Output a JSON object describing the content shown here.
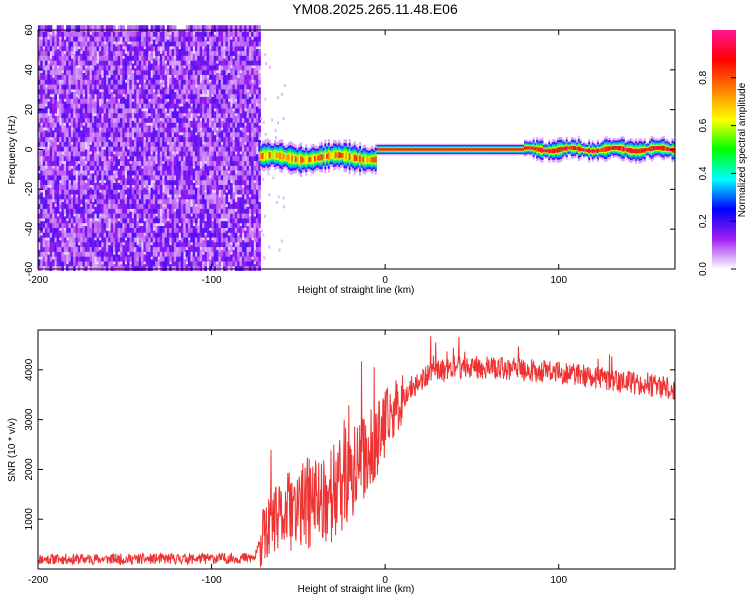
{
  "page_title": "YM08.2025.265.11.48.E06",
  "chart_data": [
    {
      "type": "heatmap",
      "title": "YM08.2025.265.11.48.E06",
      "xlabel": "Height of straight line (km)",
      "ylabel": "Frequency (Hz)",
      "xlim": [
        -200,
        167
      ],
      "ylim": [
        -60,
        60
      ],
      "x_ticks": [
        -200,
        -100,
        0,
        100
      ],
      "y_ticks": [
        -60,
        -40,
        -20,
        0,
        20,
        40,
        60
      ],
      "colorbar": {
        "label": "Normalized spectral amplitude",
        "range": [
          0.0,
          1.0
        ],
        "ticks": [
          0.0,
          0.2,
          0.4,
          0.6,
          0.8
        ],
        "colors": [
          "#ffffff",
          "#a020f0",
          "#0000ff",
          "#00ffff",
          "#00ff00",
          "#ffff00",
          "#ff7f00",
          "#ff0000",
          "#ff1493"
        ]
      },
      "regions": [
        {
          "name": "noise band",
          "x_range": [
            -200,
            -72
          ],
          "freq_range": [
            -60,
            60
          ],
          "typical_amplitude": 0.1
        },
        {
          "name": "weak onset signal",
          "x_range": [
            -72,
            -5
          ],
          "center_freq": -4,
          "typical_amplitude": 0.6
        },
        {
          "name": "strong steady signal",
          "x_range": [
            -5,
            80
          ],
          "center_freq": 0,
          "typical_amplitude": 0.9
        },
        {
          "name": "fluctuating signal",
          "x_range": [
            80,
            167
          ],
          "center_freq": 0,
          "typical_amplitude": 0.8
        }
      ]
    },
    {
      "type": "line",
      "xlabel": "Height of straight line (km)",
      "ylabel": "SNR (10 * v/v)",
      "xlim": [
        -200,
        167
      ],
      "ylim": [
        0,
        4800
      ],
      "x_ticks": [
        -200,
        -100,
        0,
        100
      ],
      "y_ticks": [
        1000,
        2000,
        3000,
        4000
      ],
      "series": [
        {
          "name": "SNR",
          "color": "#ee3333",
          "x": [
            -200,
            -150,
            -100,
            -75,
            -72,
            -65,
            -55,
            -45,
            -35,
            -25,
            -15,
            -5,
            5,
            15,
            25,
            40,
            60,
            80,
            100,
            120,
            140,
            160,
            167
          ],
          "y": [
            200,
            200,
            210,
            220,
            550,
            900,
            1150,
            1300,
            1450,
            1650,
            2100,
            2550,
            3200,
            3650,
            3900,
            4050,
            4050,
            4000,
            3950,
            3850,
            3750,
            3650,
            3600
          ]
        }
      ]
    }
  ]
}
